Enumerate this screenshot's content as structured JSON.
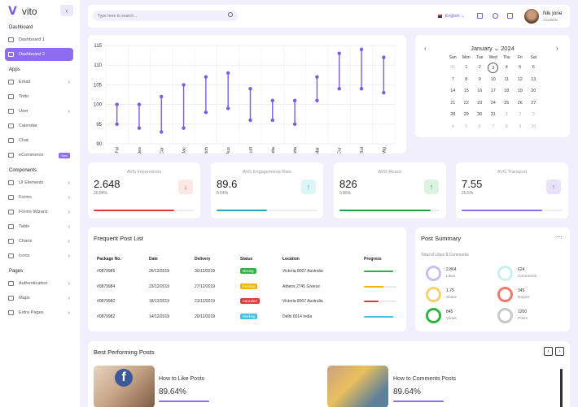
{
  "sidebar": {
    "brand": "vito",
    "sections": [
      {
        "title": "Dashboard",
        "items": [
          {
            "label": "Dashboard 1",
            "arrow": false
          },
          {
            "label": "Dashboard 2",
            "arrow": false,
            "active": true
          }
        ]
      },
      {
        "title": "Apps",
        "items": [
          {
            "label": "Email",
            "arrow": true
          },
          {
            "label": "Todo",
            "arrow": false
          },
          {
            "label": "User",
            "arrow": true
          },
          {
            "label": "Calendar",
            "arrow": false
          },
          {
            "label": "Chat",
            "arrow": false
          },
          {
            "label": "eCommerce",
            "badge": "New"
          }
        ]
      },
      {
        "title": "Components",
        "items": [
          {
            "label": "UI Elements",
            "arrow": true
          },
          {
            "label": "Forms",
            "arrow": true
          },
          {
            "label": "Forms Wizard",
            "arrow": true
          },
          {
            "label": "Table",
            "arrow": true
          },
          {
            "label": "Charts",
            "arrow": true
          },
          {
            "label": "Icons",
            "arrow": true
          }
        ]
      },
      {
        "title": "Pages",
        "items": [
          {
            "label": "Authentication",
            "arrow": true
          },
          {
            "label": "Maps",
            "arrow": true
          },
          {
            "label": "Extra Pages",
            "arrow": true
          }
        ]
      }
    ]
  },
  "header": {
    "search_placeholder": "Type here to search...",
    "language": "English",
    "user_name": "Nik jone",
    "user_status": "Available"
  },
  "chart_data": {
    "type": "dumbbell",
    "categories": [
      "Fai",
      "Des",
      "Cor",
      "Jac",
      "Rich",
      "Aus",
      "Aust",
      "Idia",
      "Idia",
      "Mar",
      "Cur",
      "Sul",
      "Mig"
    ],
    "series": [
      {
        "values_low": [
          95,
          94,
          93,
          94,
          98,
          99,
          96,
          96,
          95,
          101,
          104,
          104,
          103
        ]
      },
      {
        "values_high": [
          100,
          100,
          102,
          105,
          107,
          108,
          104,
          101,
          101,
          107,
          113,
          114,
          112
        ]
      }
    ],
    "ylim": [
      90,
      115
    ],
    "yticks": [
      90,
      95,
      100,
      105,
      110,
      115
    ],
    "accent": "#7b5ce5"
  },
  "calendar": {
    "month": "January",
    "year": "2024",
    "day_names": [
      "Sun",
      "Mon",
      "Tue",
      "Wed",
      "Thu",
      "Fri",
      "Sat"
    ],
    "days": [
      [
        "31",
        "1",
        "2",
        "3",
        "4",
        "5",
        "6"
      ],
      [
        "7",
        "8",
        "9",
        "10",
        "11",
        "12",
        "13"
      ],
      [
        "14",
        "15",
        "16",
        "17",
        "18",
        "19",
        "20"
      ],
      [
        "21",
        "22",
        "23",
        "24",
        "25",
        "26",
        "27"
      ],
      [
        "28",
        "29",
        "30",
        "31",
        "1",
        "2",
        "3"
      ],
      [
        "4",
        "5",
        "6",
        "7",
        "8",
        "9",
        "10"
      ]
    ],
    "selected": "3"
  },
  "stats": [
    {
      "label": "AVG Impressions",
      "value": "2.648",
      "sub": "26.84%",
      "fill": 0.8,
      "color": "#e23b3b",
      "icon_bg": "#fde8e8",
      "icon": "↓"
    },
    {
      "label": "AVG Engagements Rate",
      "value": "89.6",
      "sub": "8.64%",
      "fill": 0.5,
      "color": "#2aa3b5",
      "icon_bg": "#def5f7",
      "icon": "↑"
    },
    {
      "label": "AVG Reach",
      "value": "826",
      "sub": "0.86%",
      "fill": 0.9,
      "color": "#23a04a",
      "icon_bg": "#dcf3e2",
      "icon": "↑"
    },
    {
      "label": "AVG Transport",
      "value": "7.55",
      "sub": "25.5%",
      "fill": 0.8,
      "color": "#8d6cf0",
      "icon_bg": "#e8e1fc",
      "icon": "↑"
    }
  ],
  "posts": {
    "title": "Frequent Post List",
    "headers": [
      "Package No.",
      "Date",
      "Delivery",
      "Status",
      "Location",
      "Progress"
    ],
    "rows": [
      {
        "pkg": "#0879985",
        "date": "26/12/2019",
        "delivery": "30/12/2019",
        "status": "Moving",
        "status_color": "#2fb344",
        "location": "Victoria 8007 Australia",
        "progress": 0.9,
        "bar_color": "#2fb344"
      },
      {
        "pkg": "#0879984",
        "date": "23/12/2019",
        "delivery": "27/12/2019",
        "status": "Pending",
        "status_color": "#f5b400",
        "location": "Athens 2745 Greece",
        "progress": 0.6,
        "bar_color": "#f5b400"
      },
      {
        "pkg": "#0879982",
        "date": "18/12/2019",
        "delivery": "21/12/2019",
        "status": "Canceled",
        "status_color": "#e23b3b",
        "location": "Victoria 8007 Australia",
        "progress": 0.45,
        "bar_color": "#e23b3b"
      },
      {
        "pkg": "#0879982",
        "date": "14/12/2019",
        "delivery": "20/12/2019",
        "status": "Working",
        "status_color": "#3bc3e8",
        "location": "Delhi 0014 India",
        "progress": 0.9,
        "bar_color": "#3bc3e8"
      }
    ]
  },
  "summary": {
    "title": "Post Summary",
    "subtitle": "Total of Likes $ Comments",
    "items": [
      {
        "num": "2.864",
        "label": "Likes",
        "color": "#c9bff5"
      },
      {
        "num": "624",
        "label": "Comments",
        "color": "#c8f0ec"
      },
      {
        "num": "1.75",
        "label": "Share",
        "color": "#f5d36b"
      },
      {
        "num": "345",
        "label": "Report",
        "color": "#f07b6a"
      },
      {
        "num": "845",
        "label": "Views",
        "color": "#2fb344"
      },
      {
        "num": "1200",
        "label": "Posts",
        "color": "#c8c8c8"
      }
    ]
  },
  "best": {
    "title": "Best Performing Posts",
    "items": [
      {
        "title": "How to Like Posts",
        "value": "89.64%"
      },
      {
        "title": "How to Comments Posts",
        "value": "89.64%"
      }
    ]
  }
}
